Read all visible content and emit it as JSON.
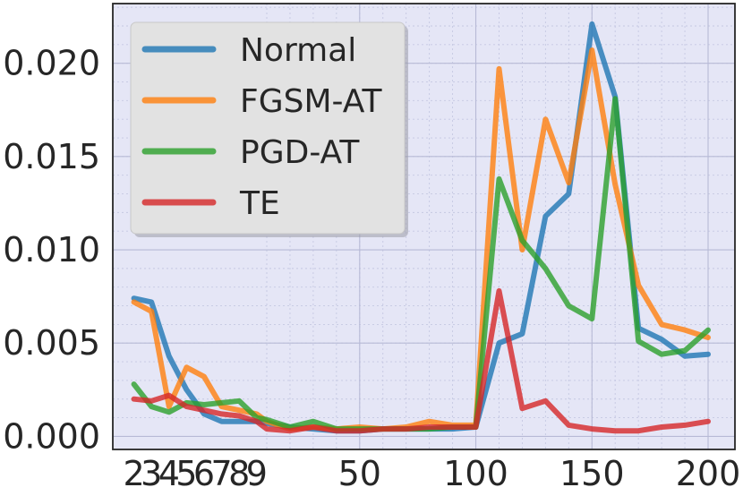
{
  "chart_data": {
    "type": "line",
    "title": "",
    "xlabel": "",
    "ylabel": "",
    "x_ticks": [
      "2",
      "3",
      "4",
      "5",
      "6",
      "7",
      "8",
      "9",
      "50",
      "100",
      "150",
      "200"
    ],
    "y_ticks": [
      "0.000",
      "0.005",
      "0.010",
      "0.015",
      "0.020"
    ],
    "ylim": [
      -0.0007,
      0.0232
    ],
    "grid": true,
    "legend_position": "top-left",
    "series": [
      {
        "name": "Normal",
        "color": "#1f77b4",
        "points": [
          [
            2,
            0.0074
          ],
          [
            3,
            0.0072
          ],
          [
            4,
            0.0043
          ],
          [
            5,
            0.0025
          ],
          [
            6,
            0.0012
          ],
          [
            7,
            0.0008
          ],
          [
            8,
            0.0008
          ],
          [
            9,
            0.0008
          ],
          [
            10,
            0.0007
          ],
          [
            20,
            0.0005
          ],
          [
            30,
            0.0004
          ],
          [
            40,
            0.0003
          ],
          [
            50,
            0.0003
          ],
          [
            60,
            0.0004
          ],
          [
            70,
            0.0004
          ],
          [
            80,
            0.0004
          ],
          [
            90,
            0.0004
          ],
          [
            100,
            0.0005
          ],
          [
            110,
            0.005
          ],
          [
            120,
            0.0055
          ],
          [
            130,
            0.0118
          ],
          [
            140,
            0.013
          ],
          [
            150,
            0.0221
          ],
          [
            160,
            0.0182
          ],
          [
            170,
            0.0058
          ],
          [
            180,
            0.0052
          ],
          [
            190,
            0.0043
          ],
          [
            200,
            0.0044
          ]
        ]
      },
      {
        "name": "FGSM-AT",
        "color": "#ff7f0e",
        "points": [
          [
            2,
            0.0072
          ],
          [
            3,
            0.0067
          ],
          [
            4,
            0.0016
          ],
          [
            5,
            0.0037
          ],
          [
            6,
            0.0032
          ],
          [
            7,
            0.0016
          ],
          [
            8,
            0.0014
          ],
          [
            9,
            0.0012
          ],
          [
            10,
            0.0008
          ],
          [
            20,
            0.0004
          ],
          [
            30,
            0.0005
          ],
          [
            40,
            0.0004
          ],
          [
            50,
            0.0005
          ],
          [
            60,
            0.0004
          ],
          [
            70,
            0.0005
          ],
          [
            80,
            0.0008
          ],
          [
            90,
            0.0006
          ],
          [
            100,
            0.0006
          ],
          [
            110,
            0.0197
          ],
          [
            120,
            0.01
          ],
          [
            130,
            0.017
          ],
          [
            140,
            0.0136
          ],
          [
            150,
            0.0207
          ],
          [
            160,
            0.0135
          ],
          [
            170,
            0.0081
          ],
          [
            180,
            0.006
          ],
          [
            190,
            0.0057
          ],
          [
            200,
            0.0053
          ]
        ]
      },
      {
        "name": "PGD-AT",
        "color": "#2ca02c",
        "points": [
          [
            2,
            0.0028
          ],
          [
            3,
            0.0016
          ],
          [
            4,
            0.0013
          ],
          [
            5,
            0.0018
          ],
          [
            6,
            0.0017
          ],
          [
            7,
            0.0018
          ],
          [
            8,
            0.0019
          ],
          [
            9,
            0.001
          ],
          [
            10,
            0.0009
          ],
          [
            20,
            0.0005
          ],
          [
            30,
            0.0008
          ],
          [
            40,
            0.0004
          ],
          [
            50,
            0.0004
          ],
          [
            60,
            0.0004
          ],
          [
            70,
            0.0004
          ],
          [
            80,
            0.0004
          ],
          [
            90,
            0.0005
          ],
          [
            100,
            0.0005
          ],
          [
            110,
            0.0138
          ],
          [
            120,
            0.0105
          ],
          [
            130,
            0.009
          ],
          [
            140,
            0.007
          ],
          [
            150,
            0.0063
          ],
          [
            160,
            0.0181
          ],
          [
            170,
            0.0051
          ],
          [
            180,
            0.0044
          ],
          [
            190,
            0.0046
          ],
          [
            200,
            0.0057
          ]
        ]
      },
      {
        "name": "TE",
        "color": "#d62728",
        "points": [
          [
            2,
            0.002
          ],
          [
            3,
            0.0019
          ],
          [
            4,
            0.0022
          ],
          [
            5,
            0.0016
          ],
          [
            6,
            0.0014
          ],
          [
            7,
            0.0012
          ],
          [
            8,
            0.0011
          ],
          [
            9,
            0.0008
          ],
          [
            10,
            0.0004
          ],
          [
            20,
            0.0003
          ],
          [
            30,
            0.0005
          ],
          [
            40,
            0.0003
          ],
          [
            50,
            0.0003
          ],
          [
            60,
            0.0004
          ],
          [
            70,
            0.0004
          ],
          [
            80,
            0.0005
          ],
          [
            90,
            0.0005
          ],
          [
            100,
            0.0005
          ],
          [
            110,
            0.0078
          ],
          [
            120,
            0.0015
          ],
          [
            130,
            0.0019
          ],
          [
            140,
            0.0006
          ],
          [
            150,
            0.0004
          ],
          [
            160,
            0.0003
          ],
          [
            170,
            0.0003
          ],
          [
            180,
            0.0005
          ],
          [
            190,
            0.0006
          ],
          [
            200,
            0.0008
          ]
        ]
      }
    ]
  }
}
